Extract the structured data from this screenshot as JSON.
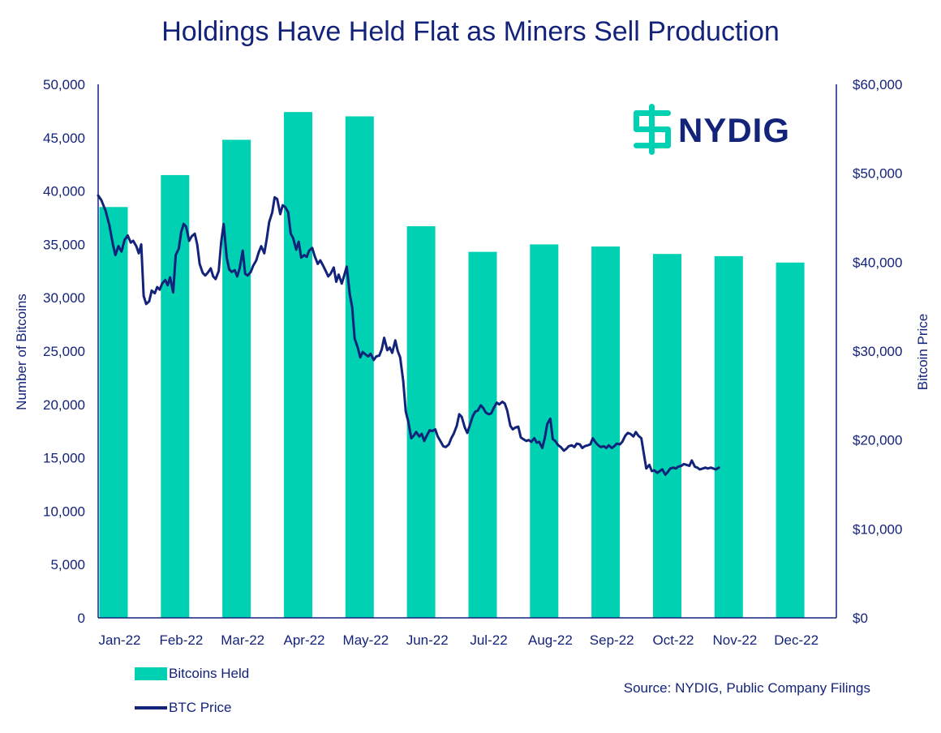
{
  "chart_data": {
    "type": "bar+line",
    "title": "Holdings Have Held Flat as Miners Sell Production",
    "categories": [
      "Jan-22",
      "Feb-22",
      "Mar-22",
      "Apr-22",
      "May-22",
      "Jun-22",
      "Jul-22",
      "Aug-22",
      "Sep-22",
      "Oct-22",
      "Nov-22",
      "Dec-22"
    ],
    "y_left": {
      "label": "Number of Bitcoins",
      "range": [
        0,
        50000
      ],
      "ticks": [
        0,
        5000,
        10000,
        15000,
        20000,
        25000,
        30000,
        35000,
        40000,
        45000,
        50000
      ],
      "tick_labels": [
        "0",
        "5,000",
        "10,000",
        "15,000",
        "20,000",
        "25,000",
        "30,000",
        "35,000",
        "40,000",
        "45,000",
        "50,000"
      ]
    },
    "y_right": {
      "label": "Bitcoin Price",
      "range": [
        0,
        60000
      ],
      "ticks": [
        0,
        10000,
        20000,
        30000,
        40000,
        50000,
        60000
      ],
      "tick_labels": [
        "$0",
        "$10,000",
        "$20,000",
        "$30,000",
        "$40,000",
        "$50,000",
        "$60,000"
      ]
    },
    "series": [
      {
        "name": "Bitcoins Held",
        "kind": "bar",
        "color": "#00d1b2",
        "values": [
          38500,
          41500,
          44800,
          47400,
          47000,
          36700,
          34300,
          35000,
          34800,
          34100,
          33900,
          33300
        ]
      },
      {
        "name": "BTC Price",
        "kind": "line",
        "color": "#14237a",
        "x_range_months": [
          0,
          12
        ],
        "points": [
          [
            0.0,
            47500
          ],
          [
            0.05,
            47000
          ],
          [
            0.12,
            45800
          ],
          [
            0.18,
            44200
          ],
          [
            0.24,
            42000
          ],
          [
            0.28,
            40800
          ],
          [
            0.33,
            41800
          ],
          [
            0.38,
            41200
          ],
          [
            0.43,
            42500
          ],
          [
            0.48,
            43000
          ],
          [
            0.53,
            42200
          ],
          [
            0.57,
            42400
          ],
          [
            0.62,
            41800
          ],
          [
            0.66,
            41000
          ],
          [
            0.7,
            42000
          ],
          [
            0.74,
            36200
          ],
          [
            0.78,
            35300
          ],
          [
            0.83,
            35600
          ],
          [
            0.87,
            36800
          ],
          [
            0.92,
            36500
          ],
          [
            0.96,
            37200
          ],
          [
            1.0,
            36900
          ],
          [
            1.04,
            37600
          ],
          [
            1.09,
            38000
          ],
          [
            1.13,
            37400
          ],
          [
            1.17,
            38300
          ],
          [
            1.22,
            36600
          ],
          [
            1.26,
            40800
          ],
          [
            1.31,
            41500
          ],
          [
            1.35,
            43400
          ],
          [
            1.39,
            44300
          ],
          [
            1.43,
            44000
          ],
          [
            1.48,
            42400
          ],
          [
            1.52,
            42900
          ],
          [
            1.57,
            43200
          ],
          [
            1.61,
            42000
          ],
          [
            1.65,
            39800
          ],
          [
            1.7,
            38800
          ],
          [
            1.74,
            38500
          ],
          [
            1.78,
            38800
          ],
          [
            1.83,
            39300
          ],
          [
            1.87,
            38400
          ],
          [
            1.91,
            38100
          ],
          [
            1.96,
            39000
          ],
          [
            2.0,
            42300
          ],
          [
            2.04,
            44300
          ],
          [
            2.09,
            40500
          ],
          [
            2.13,
            39200
          ],
          [
            2.17,
            38900
          ],
          [
            2.22,
            39100
          ],
          [
            2.26,
            38400
          ],
          [
            2.3,
            39300
          ],
          [
            2.35,
            41300
          ],
          [
            2.39,
            38700
          ],
          [
            2.43,
            38500
          ],
          [
            2.48,
            38900
          ],
          [
            2.52,
            39600
          ],
          [
            2.57,
            40200
          ],
          [
            2.61,
            41100
          ],
          [
            2.65,
            41800
          ],
          [
            2.7,
            41000
          ],
          [
            2.74,
            42600
          ],
          [
            2.78,
            44500
          ],
          [
            2.83,
            45600
          ],
          [
            2.87,
            47300
          ],
          [
            2.91,
            47100
          ],
          [
            2.96,
            45400
          ],
          [
            3.0,
            46400
          ],
          [
            3.04,
            46200
          ],
          [
            3.09,
            45600
          ],
          [
            3.13,
            43200
          ],
          [
            3.17,
            42700
          ],
          [
            3.22,
            41400
          ],
          [
            3.26,
            42300
          ],
          [
            3.3,
            40500
          ],
          [
            3.35,
            40800
          ],
          [
            3.39,
            40600
          ],
          [
            3.43,
            41300
          ],
          [
            3.48,
            41600
          ],
          [
            3.52,
            40700
          ],
          [
            3.57,
            39800
          ],
          [
            3.61,
            40200
          ],
          [
            3.65,
            39700
          ],
          [
            3.7,
            39000
          ],
          [
            3.74,
            38400
          ],
          [
            3.78,
            38700
          ],
          [
            3.83,
            39400
          ],
          [
            3.87,
            37800
          ],
          [
            3.91,
            38600
          ],
          [
            3.96,
            37600
          ],
          [
            4.0,
            38500
          ],
          [
            4.04,
            39500
          ],
          [
            4.09,
            36400
          ],
          [
            4.13,
            34900
          ],
          [
            4.17,
            31400
          ],
          [
            4.22,
            30400
          ],
          [
            4.26,
            29300
          ],
          [
            4.3,
            29900
          ],
          [
            4.35,
            29600
          ],
          [
            4.39,
            29400
          ],
          [
            4.43,
            29700
          ],
          [
            4.48,
            29000
          ],
          [
            4.52,
            29400
          ],
          [
            4.57,
            29500
          ],
          [
            4.61,
            30200
          ],
          [
            4.65,
            31500
          ],
          [
            4.7,
            30100
          ],
          [
            4.74,
            30400
          ],
          [
            4.78,
            29800
          ],
          [
            4.83,
            31200
          ],
          [
            4.87,
            30000
          ],
          [
            4.91,
            29300
          ],
          [
            4.96,
            26600
          ],
          [
            5.0,
            23200
          ],
          [
            5.04,
            22100
          ],
          [
            5.09,
            20200
          ],
          [
            5.13,
            20500
          ],
          [
            5.17,
            20900
          ],
          [
            5.22,
            20400
          ],
          [
            5.26,
            20700
          ],
          [
            5.3,
            19900
          ],
          [
            5.35,
            20600
          ],
          [
            5.39,
            21100
          ],
          [
            5.43,
            21000
          ],
          [
            5.48,
            21200
          ],
          [
            5.52,
            20400
          ],
          [
            5.57,
            19800
          ],
          [
            5.61,
            19300
          ],
          [
            5.65,
            19200
          ],
          [
            5.7,
            19500
          ],
          [
            5.74,
            20200
          ],
          [
            5.78,
            20700
          ],
          [
            5.83,
            21600
          ],
          [
            5.87,
            22900
          ],
          [
            5.91,
            22600
          ],
          [
            5.96,
            21400
          ],
          [
            6.0,
            20800
          ],
          [
            6.04,
            21600
          ],
          [
            6.09,
            22700
          ],
          [
            6.13,
            23200
          ],
          [
            6.17,
            23300
          ],
          [
            6.22,
            23900
          ],
          [
            6.26,
            23600
          ],
          [
            6.3,
            23100
          ],
          [
            6.35,
            22900
          ],
          [
            6.39,
            23000
          ],
          [
            6.43,
            23600
          ],
          [
            6.48,
            24200
          ],
          [
            6.52,
            24000
          ],
          [
            6.57,
            24300
          ],
          [
            6.61,
            24100
          ],
          [
            6.65,
            23300
          ],
          [
            6.7,
            21600
          ],
          [
            6.74,
            21200
          ],
          [
            6.78,
            21400
          ],
          [
            6.83,
            21500
          ],
          [
            6.87,
            20300
          ],
          [
            6.91,
            20100
          ],
          [
            6.96,
            19900
          ],
          [
            7.0,
            20000
          ],
          [
            7.04,
            19800
          ],
          [
            7.09,
            20200
          ],
          [
            7.13,
            19700
          ],
          [
            7.17,
            19800
          ],
          [
            7.22,
            19100
          ],
          [
            7.26,
            20200
          ],
          [
            7.3,
            21800
          ],
          [
            7.35,
            22400
          ],
          [
            7.39,
            20100
          ],
          [
            7.43,
            19900
          ],
          [
            7.48,
            19400
          ],
          [
            7.52,
            19200
          ],
          [
            7.57,
            18800
          ],
          [
            7.61,
            19000
          ],
          [
            7.65,
            19300
          ],
          [
            7.7,
            19400
          ],
          [
            7.74,
            19200
          ],
          [
            7.78,
            19600
          ],
          [
            7.83,
            19500
          ],
          [
            7.87,
            19100
          ],
          [
            7.91,
            19300
          ],
          [
            7.96,
            19400
          ],
          [
            8.0,
            19500
          ],
          [
            8.04,
            20200
          ],
          [
            8.09,
            19700
          ],
          [
            8.13,
            19400
          ],
          [
            8.17,
            19200
          ],
          [
            8.22,
            19300
          ],
          [
            8.26,
            19100
          ],
          [
            8.3,
            19400
          ],
          [
            8.35,
            19100
          ],
          [
            8.39,
            19300
          ],
          [
            8.43,
            19600
          ],
          [
            8.48,
            19500
          ],
          [
            8.52,
            19800
          ],
          [
            8.57,
            20500
          ],
          [
            8.61,
            20800
          ],
          [
            8.65,
            20700
          ],
          [
            8.7,
            20400
          ],
          [
            8.74,
            20900
          ],
          [
            8.78,
            20500
          ],
          [
            8.83,
            20200
          ],
          [
            8.87,
            18500
          ],
          [
            8.91,
            16800
          ],
          [
            8.96,
            17200
          ],
          [
            9.0,
            16500
          ],
          [
            9.04,
            16600
          ],
          [
            9.09,
            16300
          ],
          [
            9.13,
            16500
          ],
          [
            9.17,
            16700
          ],
          [
            9.22,
            16100
          ],
          [
            9.26,
            16400
          ],
          [
            9.3,
            16800
          ],
          [
            9.35,
            16900
          ],
          [
            9.39,
            16800
          ],
          [
            9.43,
            17000
          ],
          [
            9.48,
            17100
          ],
          [
            9.52,
            17300
          ],
          [
            9.57,
            17200
          ],
          [
            9.61,
            17100
          ],
          [
            9.65,
            17700
          ],
          [
            9.7,
            17000
          ],
          [
            9.74,
            16900
          ],
          [
            9.78,
            16700
          ],
          [
            9.83,
            16800
          ],
          [
            9.87,
            16900
          ],
          [
            9.91,
            16800
          ],
          [
            9.96,
            16900
          ],
          [
            10.0,
            16800
          ],
          [
            10.04,
            16700
          ],
          [
            10.09,
            16900
          ]
        ]
      }
    ],
    "legend": [
      "Bitcoins Held",
      "BTC Price"
    ],
    "legend_position": "bottom-left",
    "source": "Source: NYDIG, Public Company Filings",
    "logo_text": "NYDIG"
  }
}
